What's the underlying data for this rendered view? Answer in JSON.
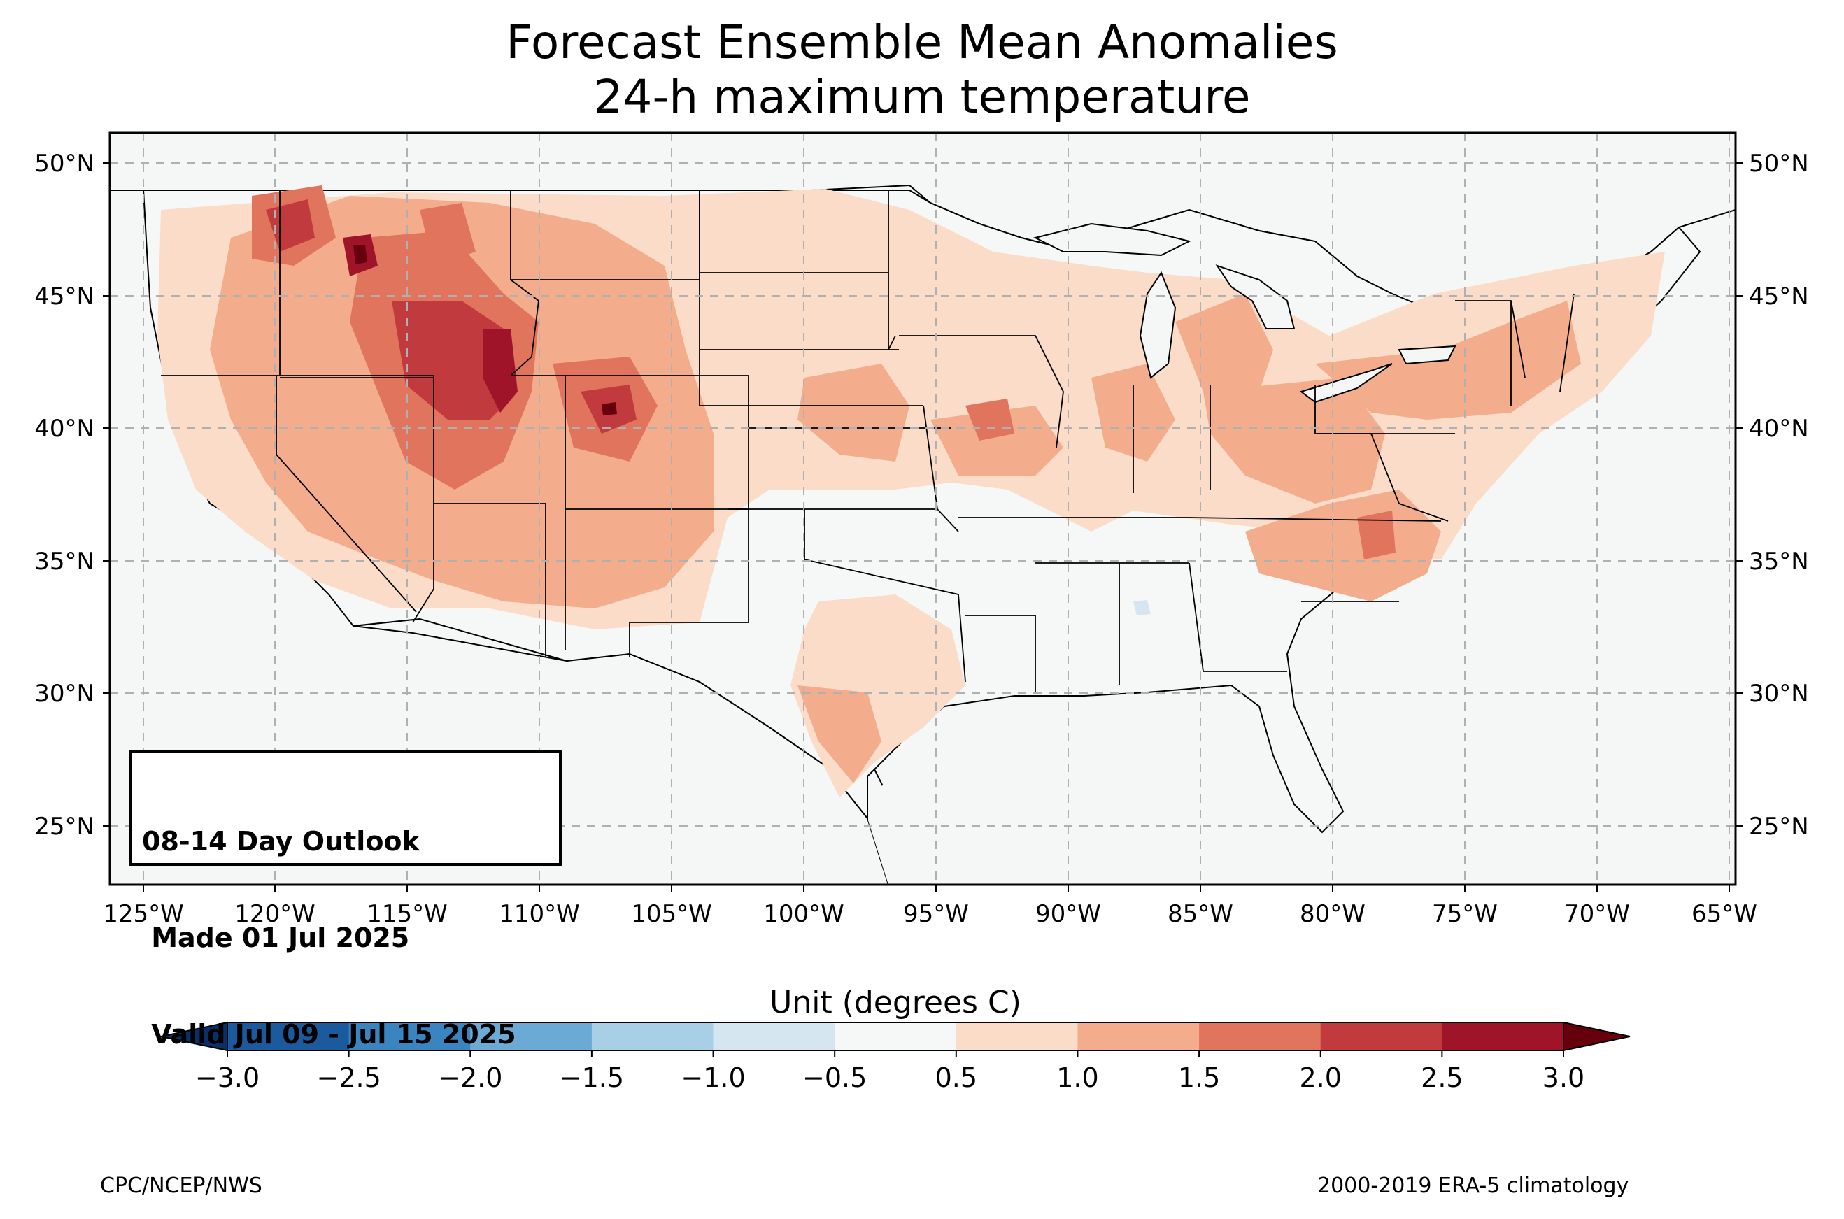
{
  "title": "Forecast Ensemble Mean Anomalies",
  "subtitle": "24-h maximum temperature",
  "outlook": {
    "line1": "08-14 Day Outlook",
    "line2": " Made 01 Jul 2025",
    "line3": " Valid Jul 09 - Jul 15 2025"
  },
  "colorbar": {
    "label": "Unit (degrees C)",
    "ticks": [
      "−3.0",
      "−2.5",
      "−2.0",
      "−1.5",
      "−1.0",
      "−0.5",
      "0.5",
      "1.0",
      "1.5",
      "2.0",
      "2.5",
      "3.0"
    ],
    "colors": [
      "#08306b",
      "#1b5a9c",
      "#3a85c0",
      "#6aaad5",
      "#a8cfe5",
      "#d6e6f0",
      "#f6f7f7",
      "#fbdcc8",
      "#f3ac8c",
      "#e0745d",
      "#c13a3d",
      "#a0142a",
      "#67000d"
    ]
  },
  "axes": {
    "lon_ticks": [
      "125°W",
      "120°W",
      "115°W",
      "110°W",
      "105°W",
      "100°W",
      "95°W",
      "90°W",
      "85°W",
      "80°W",
      "75°W",
      "70°W",
      "65°W"
    ],
    "lat_ticks": [
      "50°N",
      "45°N",
      "40°N",
      "35°N",
      "30°N",
      "25°N"
    ]
  },
  "footer": {
    "left": "CPC/NCEP/NWS",
    "right": "2000-2019 ERA-5 climatology"
  }
}
